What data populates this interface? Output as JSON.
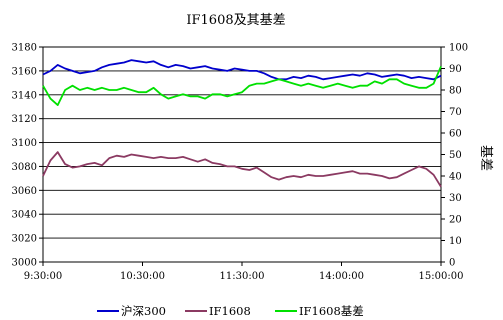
{
  "chart_data": {
    "type": "line",
    "title": "IF1608及其基差",
    "xlabel": "",
    "ylabel_left": "",
    "ylabel_right": "基差",
    "x_ticks": [
      "9:30:00",
      "10:30:00",
      "11:30:00",
      "14:00:00",
      "15:00:00"
    ],
    "ylim_left": [
      3000,
      3180
    ],
    "yticks_left": [
      3000,
      3020,
      3040,
      3060,
      3080,
      3100,
      3120,
      3140,
      3160,
      3180
    ],
    "ylim_right": [
      0,
      100
    ],
    "yticks_right": [
      0,
      10,
      20,
      30,
      40,
      50,
      60,
      70,
      80,
      90,
      100
    ],
    "grid": true,
    "legend_position": "bottom",
    "series": [
      {
        "name": "沪深300",
        "axis": "left",
        "color": "#0000cc",
        "values": [
          3157,
          3160,
          3165,
          3162,
          3160,
          3158,
          3159,
          3160,
          3163,
          3165,
          3166,
          3167,
          3169,
          3168,
          3167,
          3168,
          3165,
          3163,
          3165,
          3164,
          3162,
          3163,
          3164,
          3162,
          3161,
          3160,
          3162,
          3161,
          3160,
          3160,
          3158,
          3155,
          3153,
          3153,
          3155,
          3154,
          3156,
          3155,
          3153,
          3154,
          3155,
          3156,
          3157,
          3156,
          3158,
          3157,
          3155,
          3156,
          3157,
          3156,
          3154,
          3155,
          3154,
          3153,
          3156
        ]
      },
      {
        "name": "IF1608",
        "axis": "left",
        "color": "#8b3a62",
        "values": [
          3072,
          3085,
          3092,
          3082,
          3079,
          3080,
          3082,
          3083,
          3081,
          3087,
          3089,
          3088,
          3090,
          3089,
          3088,
          3087,
          3088,
          3087,
          3087,
          3088,
          3086,
          3084,
          3086,
          3083,
          3082,
          3080,
          3080,
          3078,
          3077,
          3079,
          3075,
          3071,
          3069,
          3071,
          3072,
          3071,
          3073,
          3072,
          3072,
          3073,
          3074,
          3075,
          3076,
          3074,
          3074,
          3073,
          3072,
          3070,
          3071,
          3074,
          3077,
          3080,
          3078,
          3073,
          3063
        ]
      },
      {
        "name": "IF1608基差",
        "axis": "right",
        "color": "#00e000",
        "values": [
          82,
          76,
          73,
          80,
          82,
          80,
          81,
          80,
          81,
          80,
          80,
          81,
          80,
          79,
          79,
          81,
          78,
          76,
          77,
          78,
          77,
          77,
          76,
          78,
          78,
          77,
          78,
          79,
          82,
          83,
          83,
          84,
          85,
          84,
          83,
          82,
          83,
          82,
          81,
          82,
          83,
          82,
          81,
          82,
          82,
          84,
          83,
          85,
          85,
          83,
          82,
          81,
          81,
          83,
          91
        ]
      }
    ]
  }
}
